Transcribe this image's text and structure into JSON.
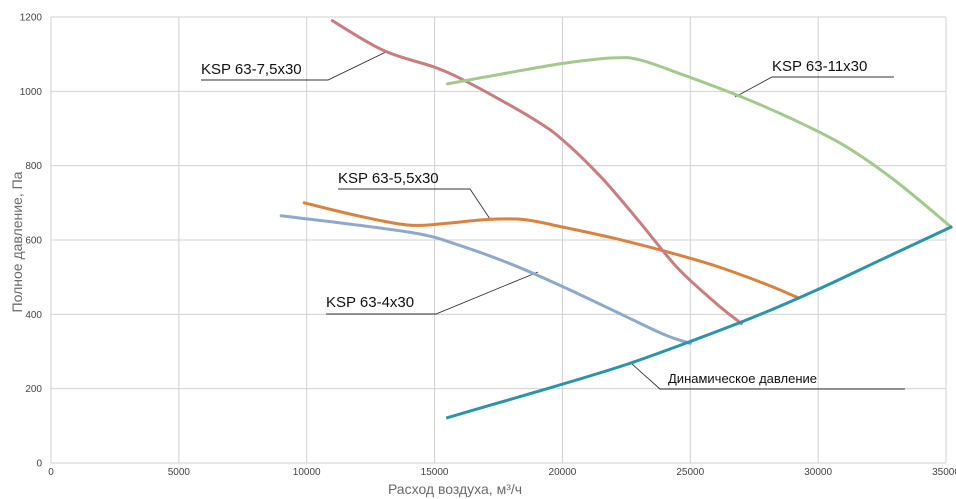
{
  "chart_data": {
    "type": "line",
    "xlabel": "Расход воздуха, м³/ч",
    "ylabel": "Полное давление, Па",
    "xlim": [
      0,
      35000
    ],
    "ylim": [
      0,
      1200
    ],
    "xticks": [
      0,
      5000,
      10000,
      15000,
      20000,
      25000,
      30000,
      35000
    ],
    "yticks": [
      0,
      200,
      400,
      600,
      800,
      1000,
      1200
    ],
    "grid": true,
    "series": [
      {
        "name": "KSP 63-4x30",
        "color": "#8fa9cc",
        "x": [
          9000,
          12000,
          14500,
          16000,
          18000,
          20000,
          22000,
          24000,
          25000
        ],
        "y": [
          665,
          640,
          615,
          585,
          535,
          475,
          410,
          345,
          322
        ]
      },
      {
        "name": "KSP 63-5,5x30",
        "color": "#d9823f",
        "x": [
          9900,
          12000,
          14000,
          15500,
          17000,
          18500,
          20000,
          22000,
          24000,
          26000,
          28000,
          29200
        ],
        "y": [
          700,
          665,
          640,
          645,
          655,
          655,
          635,
          605,
          570,
          530,
          480,
          445
        ]
      },
      {
        "name": "KSP 63-7,5x30",
        "color": "#c97d7f",
        "x": [
          11000,
          13000,
          15000,
          16000,
          17500,
          19000,
          20000,
          21500,
          23000,
          24500,
          26000,
          27000
        ],
        "y": [
          1190,
          1110,
          1065,
          1035,
          980,
          920,
          870,
          770,
          650,
          525,
          430,
          375
        ]
      },
      {
        "name": "KSP 63-11x30",
        "color": "#a3c98c",
        "x": [
          15500,
          17500,
          20000,
          22000,
          23000,
          24500,
          27000,
          29000,
          31000,
          33000,
          35200
        ],
        "y": [
          1020,
          1045,
          1075,
          1090,
          1085,
          1050,
          985,
          925,
          855,
          760,
          635
        ]
      },
      {
        "name": "Динамическое давление",
        "color": "#2b94a8",
        "x": [
          15500,
          17500,
          20000,
          22500,
          25000,
          27500,
          30000,
          32500,
          35200
        ],
        "y": [
          122,
          162,
          212,
          265,
          327,
          393,
          467,
          548,
          635
        ]
      }
    ]
  }
}
